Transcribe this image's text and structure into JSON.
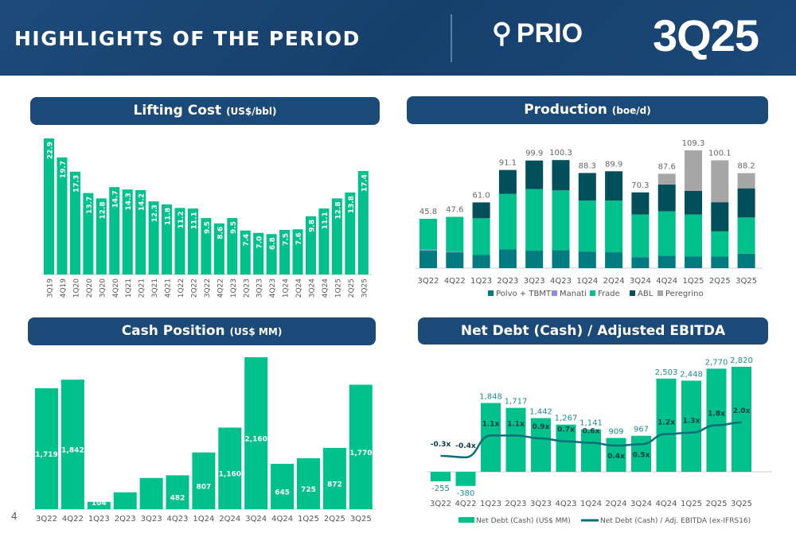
{
  "header": {
    "title": "HIGHLIGHTS OF THE PERIOD",
    "logo": "PRIO",
    "quarter": "3Q25"
  },
  "page_number": "4",
  "colors": {
    "green": "#00c08b",
    "teal": "#007b80",
    "dark": "#004f5a",
    "purple": "#8b8fe0",
    "gray": "#a6a6a6",
    "navy": "#1c4a78"
  },
  "chart_data": [
    {
      "type": "bar",
      "title": "Lifting Cost",
      "unit": "(US$/bbl)",
      "categories": [
        "3Q19",
        "4Q19",
        "1Q20",
        "2Q20",
        "3Q20",
        "4Q20",
        "1Q21",
        "2Q21",
        "3Q21",
        "4Q21",
        "1Q22",
        "2Q22",
        "3Q22",
        "4Q22",
        "1Q23",
        "2Q23",
        "3Q23",
        "4Q23",
        "1Q24",
        "2Q24",
        "3Q24",
        "4Q24",
        "1Q25",
        "2Q25",
        "3Q25"
      ],
      "values": [
        22.9,
        19.7,
        17.3,
        13.7,
        12.8,
        14.7,
        14.3,
        14.2,
        12.3,
        11.8,
        11.2,
        11.1,
        9.5,
        8.6,
        9.5,
        7.4,
        7.0,
        6.8,
        7.5,
        7.6,
        9.8,
        11.1,
        12.8,
        13.8,
        17.4
      ],
      "labels": [
        "22.9",
        "19.7",
        "17.3",
        "13.7",
        "12.8",
        "14.7",
        "14.3",
        "14.2",
        "12.3",
        "11.8",
        "11.2",
        "11.1",
        "9.5",
        "8.6",
        "9.5",
        "7.4",
        "7.0",
        "6.8",
        "7.5",
        "7.6",
        "9.8",
        "11.1",
        "12.8",
        "13.8",
        "17.4"
      ]
    },
    {
      "type": "stacked_bar",
      "title": "Production",
      "unit": "(boe/d)",
      "categories": [
        "3Q22",
        "4Q22",
        "1Q23",
        "2Q23",
        "3Q23",
        "4Q23",
        "1Q24",
        "2Q24",
        "3Q24",
        "4Q24",
        "1Q25",
        "2Q25",
        "3Q25"
      ],
      "totals": [
        "45.8",
        "47.6",
        "61.0",
        "91.1",
        "99.9",
        "100.3",
        "88.3",
        "89.9",
        "70.3",
        "87.6",
        "109.3",
        "100.1",
        "88.2"
      ],
      "series": [
        {
          "name": "Polvo + TBMT",
          "values": [
            16.2,
            14.7,
            12.2,
            17.4,
            16.2,
            16.7,
            15.4,
            14.7,
            10.2,
            11.4,
            10.7,
            10.7,
            13.4
          ]
        },
        {
          "name": "Manati",
          "values": [
            1.0,
            0.5,
            0,
            0,
            0,
            0,
            0,
            0,
            0,
            0,
            0,
            0,
            0
          ]
        },
        {
          "name": "Frade",
          "values": [
            28.6,
            32.4,
            34.1,
            51.5,
            57.2,
            55.5,
            47.3,
            48.0,
            39.6,
            41.3,
            39.0,
            23.4,
            33.6
          ]
        },
        {
          "name": "ABL",
          "values": [
            0,
            0,
            14.7,
            22.2,
            26.5,
            28.1,
            25.6,
            27.2,
            20.5,
            24.9,
            22.1,
            27.1,
            27.1
          ]
        },
        {
          "name": "Peregrino",
          "values": [
            0,
            0,
            0,
            0,
            0,
            0,
            0,
            0,
            0,
            10.0,
            37.5,
            38.9,
            14.1
          ]
        }
      ]
    },
    {
      "type": "bar",
      "title": "Cash Position",
      "unit": "(US$ MM)",
      "categories": [
        "3Q22",
        "4Q22",
        "1Q23",
        "2Q23",
        "3Q23",
        "4Q23",
        "1Q24",
        "2Q24",
        "3Q24",
        "4Q24",
        "1Q25",
        "2Q25",
        "3Q25"
      ],
      "values": [
        1719,
        1842,
        104,
        240,
        444,
        482,
        807,
        1160,
        2160,
        645,
        725,
        872,
        1770
      ],
      "labels": [
        "1,719",
        "1,842",
        "104",
        "240",
        "444",
        "482",
        "807",
        "1,160",
        "2,160",
        "645",
        "725",
        "872",
        "1,770"
      ]
    },
    {
      "type": "bar+line",
      "title": "Net Debt (Cash) / Adjusted EBITDA",
      "categories": [
        "3Q22",
        "4Q22",
        "1Q23",
        "2Q23",
        "3Q23",
        "4Q23",
        "1Q24",
        "2Q24",
        "3Q24",
        "4Q24",
        "1Q25",
        "2Q25",
        "3Q25"
      ],
      "series": [
        {
          "name": "Net Debt (Cash) (US$ MM)",
          "values": [
            -255,
            -380,
            1848,
            1717,
            1442,
            1267,
            1141,
            909,
            967,
            2503,
            2448,
            2770,
            2820
          ],
          "labels": [
            "-255",
            "-380",
            "1,848",
            "1,717",
            "1,442",
            "1,267",
            "1,141",
            "909",
            "967",
            "2,503",
            "2,448",
            "2,770",
            "2,820"
          ]
        },
        {
          "name": "Net Debt (Cash) / Adj. EBITDA (ex-IFRS16)",
          "values": [
            -0.3,
            -0.4,
            1.1,
            1.1,
            0.9,
            0.7,
            0.6,
            0.4,
            0.5,
            1.2,
            1.3,
            1.8,
            2.0
          ],
          "labels": [
            "-0.3x",
            "-0.4x",
            "1.1x",
            "1.1x",
            "0.9x",
            "0.7x",
            "0.6x",
            "0.4x",
            "0.5x",
            "1.2x",
            "1.3x",
            "1.8x",
            "2.0x"
          ]
        }
      ]
    }
  ]
}
